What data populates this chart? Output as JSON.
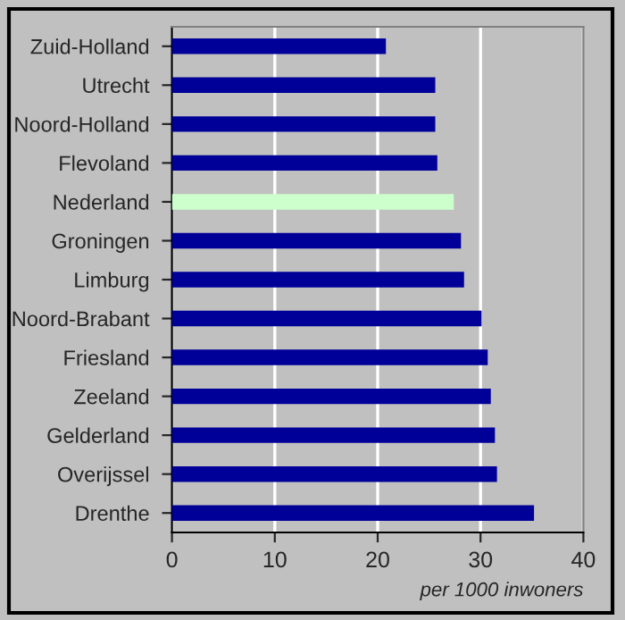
{
  "chart_data": {
    "type": "bar",
    "orientation": "horizontal",
    "xlabel": "per 1000 inwoners",
    "categories": [
      "Zuid-Holland",
      "Utrecht",
      "Noord-Holland",
      "Flevoland",
      "Nederland",
      "Groningen",
      "Limburg",
      "Noord-Brabant",
      "Friesland",
      "Zeeland",
      "Gelderland",
      "Overijssel",
      "Drenthe"
    ],
    "values": [
      20.8,
      25.6,
      25.6,
      25.8,
      27.4,
      28.1,
      28.4,
      30.1,
      30.7,
      31.0,
      31.4,
      31.6,
      35.2
    ],
    "colors": [
      "#000099",
      "#000099",
      "#000099",
      "#000099",
      "#ccffcc",
      "#000099",
      "#000099",
      "#000099",
      "#000099",
      "#000099",
      "#000099",
      "#000099",
      "#000099"
    ],
    "xlim": [
      0,
      40
    ],
    "xticks": [
      0,
      10,
      20,
      30,
      40
    ],
    "grid": "x"
  }
}
